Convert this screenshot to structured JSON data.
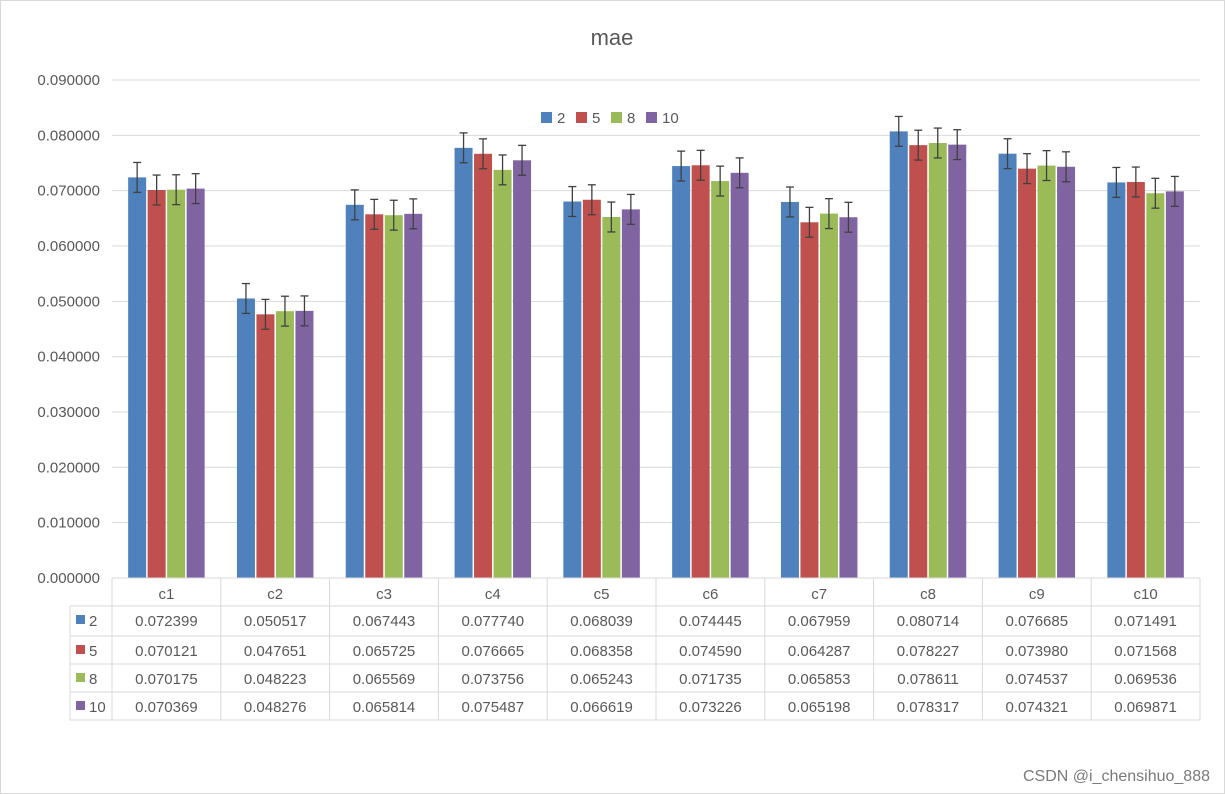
{
  "chart_data": {
    "type": "bar",
    "title": "mae",
    "categories": [
      "c1",
      "c2",
      "c3",
      "c4",
      "c5",
      "c6",
      "c7",
      "c8",
      "c9",
      "c10"
    ],
    "ylim": [
      0,
      0.09
    ],
    "yticks": [
      "0.000000",
      "0.010000",
      "0.020000",
      "0.030000",
      "0.040000",
      "0.050000",
      "0.060000",
      "0.070000",
      "0.080000",
      "0.090000"
    ],
    "grid": true,
    "legend": "top-center",
    "error_bars": true,
    "series": [
      {
        "name": "2",
        "color": "#4f81bd",
        "values": [
          0.072399,
          0.050517,
          0.067443,
          0.07774,
          0.068039,
          0.074445,
          0.067959,
          0.080714,
          0.076685,
          0.071491
        ]
      },
      {
        "name": "5",
        "color": "#c0504d",
        "values": [
          0.070121,
          0.047651,
          0.065725,
          0.076665,
          0.068358,
          0.07459,
          0.064287,
          0.078227,
          0.07398,
          0.071568
        ]
      },
      {
        "name": "8",
        "color": "#9bbb59",
        "values": [
          0.070175,
          0.048223,
          0.065569,
          0.073756,
          0.065243,
          0.071735,
          0.065853,
          0.078611,
          0.074537,
          0.069536
        ]
      },
      {
        "name": "10",
        "color": "#8064a2",
        "values": [
          0.070369,
          0.048276,
          0.065814,
          0.075487,
          0.066619,
          0.073226,
          0.065198,
          0.078317,
          0.074321,
          0.069871
        ]
      }
    ],
    "data_table": true
  },
  "watermark": "CSDN @i_chensihuo_888"
}
